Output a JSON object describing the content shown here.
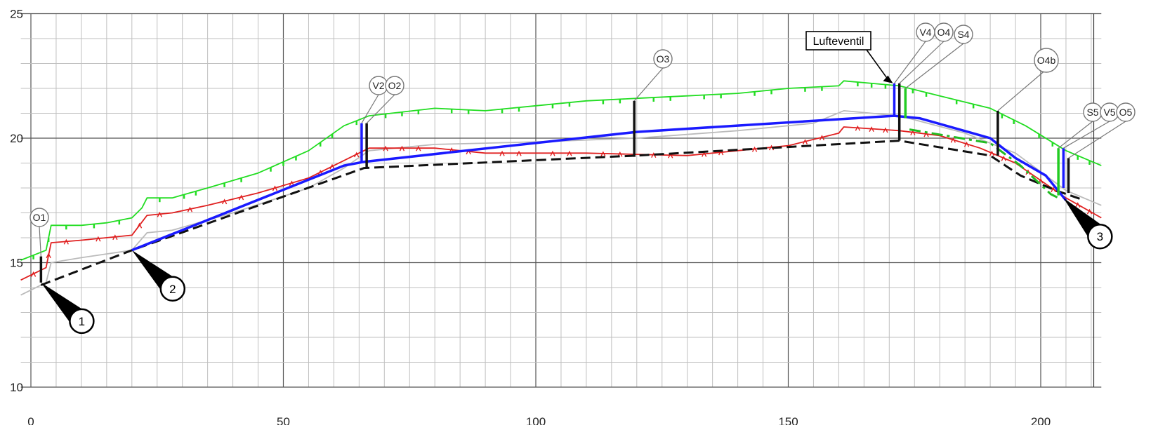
{
  "chart_data": {
    "type": "line",
    "title": "",
    "xlabel": "",
    "ylabel": "",
    "xlim": [
      0,
      211
    ],
    "ylim": [
      10,
      25
    ],
    "grid": true,
    "x_ticks": [
      0,
      50,
      100,
      150,
      200
    ],
    "y_ticks": [
      10,
      15,
      20,
      25
    ],
    "series": [
      {
        "key": "green_terrain",
        "color": "#22dd22",
        "dashed": false,
        "ticked": true,
        "points": [
          [
            -2,
            15.1
          ],
          [
            3,
            15.5
          ],
          [
            4,
            16.5
          ],
          [
            10,
            16.5
          ],
          [
            15,
            16.6
          ],
          [
            20,
            16.8
          ],
          [
            22,
            17.2
          ],
          [
            23,
            17.6
          ],
          [
            28,
            17.6
          ],
          [
            35,
            18.0
          ],
          [
            45,
            18.6
          ],
          [
            55,
            19.5
          ],
          [
            62,
            20.5
          ],
          [
            67,
            20.9
          ],
          [
            80,
            21.2
          ],
          [
            90,
            21.1
          ],
          [
            100,
            21.3
          ],
          [
            110,
            21.5
          ],
          [
            120,
            21.6
          ],
          [
            130,
            21.7
          ],
          [
            140,
            21.8
          ],
          [
            150,
            22.0
          ],
          [
            160,
            22.1
          ],
          [
            161,
            22.3
          ],
          [
            172,
            22.1
          ],
          [
            180,
            21.7
          ],
          [
            190,
            21.2
          ],
          [
            197,
            20.5
          ],
          [
            205,
            19.5
          ],
          [
            212,
            18.9
          ]
        ]
      },
      {
        "key": "red_terrain",
        "color": "#e02020",
        "dashed": false,
        "ticked": true,
        "points": [
          [
            -2,
            14.3
          ],
          [
            3,
            14.8
          ],
          [
            4,
            15.8
          ],
          [
            10,
            15.9
          ],
          [
            20,
            16.1
          ],
          [
            23,
            16.9
          ],
          [
            28,
            17.0
          ],
          [
            35,
            17.3
          ],
          [
            45,
            17.8
          ],
          [
            55,
            18.4
          ],
          [
            62,
            19.1
          ],
          [
            67,
            19.6
          ],
          [
            80,
            19.6
          ],
          [
            90,
            19.4
          ],
          [
            100,
            19.4
          ],
          [
            110,
            19.4
          ],
          [
            120,
            19.35
          ],
          [
            130,
            19.3
          ],
          [
            140,
            19.5
          ],
          [
            150,
            19.7
          ],
          [
            160,
            20.2
          ],
          [
            161,
            20.45
          ],
          [
            172,
            20.3
          ],
          [
            180,
            20.1
          ],
          [
            188,
            19.6
          ],
          [
            195,
            19.0
          ],
          [
            205,
            17.6
          ],
          [
            212,
            16.8
          ]
        ]
      },
      {
        "key": "gray_terrain",
        "color": "#bbbbbb",
        "dashed": false,
        "ticked": false,
        "points": [
          [
            -2,
            13.7
          ],
          [
            3,
            14.2
          ],
          [
            4,
            15.0
          ],
          [
            10,
            15.2
          ],
          [
            20,
            15.5
          ],
          [
            23,
            16.2
          ],
          [
            28,
            16.3
          ],
          [
            40,
            17.0
          ],
          [
            55,
            18.0
          ],
          [
            62,
            18.8
          ],
          [
            67,
            19.5
          ],
          [
            80,
            19.75
          ],
          [
            90,
            19.8
          ],
          [
            100,
            19.85
          ],
          [
            120,
            20.0
          ],
          [
            140,
            20.3
          ],
          [
            155,
            20.6
          ],
          [
            161,
            21.1
          ],
          [
            172,
            20.9
          ],
          [
            185,
            20.2
          ],
          [
            195,
            19.4
          ],
          [
            205,
            17.9
          ],
          [
            212,
            17.3
          ]
        ]
      },
      {
        "key": "blue_pipe",
        "color": "#1a1aff",
        "dashed": false,
        "ticked": false,
        "points": [
          [
            20,
            15.5
          ],
          [
            62,
            18.9
          ],
          [
            66,
            19.05
          ],
          [
            120,
            20.25
          ],
          [
            171,
            20.9
          ],
          [
            176,
            20.8
          ],
          [
            190,
            20.0
          ],
          [
            195,
            19.2
          ],
          [
            201,
            18.5
          ],
          [
            205,
            17.5
          ]
        ]
      },
      {
        "key": "black_pipe",
        "color": "#111111",
        "dashed": true,
        "ticked": false,
        "points": [
          [
            2,
            14.1
          ],
          [
            20,
            15.5
          ],
          [
            66,
            18.8
          ],
          [
            120,
            19.3
          ],
          [
            172,
            19.9
          ],
          [
            172,
            19.9
          ],
          [
            190,
            19.3
          ],
          [
            196,
            18.5
          ],
          [
            203,
            17.9
          ],
          [
            208,
            17.55
          ]
        ]
      },
      {
        "key": "green_dashdot",
        "color": "#22bb22",
        "dashed": true,
        "ticked": false,
        "points": [
          [
            174,
            20.35
          ],
          [
            190,
            19.8
          ],
          [
            196,
            18.9
          ],
          [
            202,
            17.75
          ],
          [
            204,
            17.55
          ]
        ]
      }
    ],
    "markers": [
      {
        "label": "O1",
        "x": 2,
        "y_low": 14.2,
        "y_high": 15.25,
        "color": "#111111"
      },
      {
        "label": "V2",
        "x": 65.5,
        "y_low": 19.0,
        "y_high": 20.6,
        "color": "#1a1aff"
      },
      {
        "label": "O2",
        "x": 66.5,
        "y_low": 18.8,
        "y_high": 20.6,
        "color": "#111111"
      },
      {
        "label": "O3",
        "x": 119.5,
        "y_low": 19.25,
        "y_high": 21.5,
        "color": "#111111"
      },
      {
        "label": "V4",
        "x": 171,
        "y_low": 20.9,
        "y_high": 22.2,
        "color": "#1a1aff"
      },
      {
        "label": "O4",
        "x": 172,
        "y_low": 19.9,
        "y_high": 22.2,
        "color": "#111111"
      },
      {
        "label": "S4",
        "x": 173.2,
        "y_low": 20.8,
        "y_high": 22.0,
        "color": "#22cc22"
      },
      {
        "label": "O4b",
        "x": 191.5,
        "y_low": 19.3,
        "y_high": 21.1,
        "color": "#111111"
      },
      {
        "label": "S5",
        "x": 203.5,
        "y_low": 17.7,
        "y_high": 19.6,
        "color": "#22cc22"
      },
      {
        "label": "V5",
        "x": 204.5,
        "y_low": 18.0,
        "y_high": 19.6,
        "color": "#1a1aff"
      },
      {
        "label": "O5",
        "x": 205.5,
        "y_low": 17.8,
        "y_high": 19.2,
        "color": "#111111"
      }
    ],
    "callouts": [
      {
        "label": "1",
        "x": 2,
        "y": 14.2
      },
      {
        "label": "2",
        "x": 20,
        "y": 15.5
      },
      {
        "label": "3",
        "x": 204.5,
        "y": 17.6
      }
    ],
    "annotations": [
      {
        "text": "Lufteventil",
        "x": 171,
        "y": 22.15
      }
    ]
  }
}
